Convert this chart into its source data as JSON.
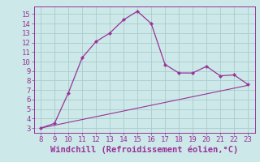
{
  "x": [
    8,
    9,
    10,
    11,
    12,
    13,
    14,
    15,
    16,
    17,
    18,
    19,
    20,
    21,
    22,
    23
  ],
  "y_main": [
    3.0,
    3.5,
    6.7,
    10.4,
    12.1,
    13.0,
    14.4,
    15.3,
    14.0,
    9.7,
    8.8,
    8.8,
    9.5,
    8.5,
    8.6,
    7.6
  ],
  "y_diag": [
    3.0,
    3.3,
    3.6,
    3.9,
    4.2,
    4.5,
    4.8,
    5.1,
    5.4,
    5.7,
    6.0,
    6.3,
    6.6,
    6.9,
    7.2,
    7.5
  ],
  "line_color": "#993399",
  "bg_color": "#cce8e8",
  "grid_color": "#aacccc",
  "xlabel": "Windchill (Refroidissement éolien,°C)",
  "xlim": [
    7.5,
    23.5
  ],
  "ylim": [
    2.5,
    15.8
  ],
  "xticks": [
    8,
    9,
    10,
    11,
    12,
    13,
    14,
    15,
    16,
    17,
    18,
    19,
    20,
    21,
    22,
    23
  ],
  "yticks": [
    3,
    4,
    5,
    6,
    7,
    8,
    9,
    10,
    11,
    12,
    13,
    14,
    15
  ],
  "tick_color": "#993399",
  "label_color": "#993399",
  "font_size": 6.5,
  "xlabel_fontsize": 7.5
}
